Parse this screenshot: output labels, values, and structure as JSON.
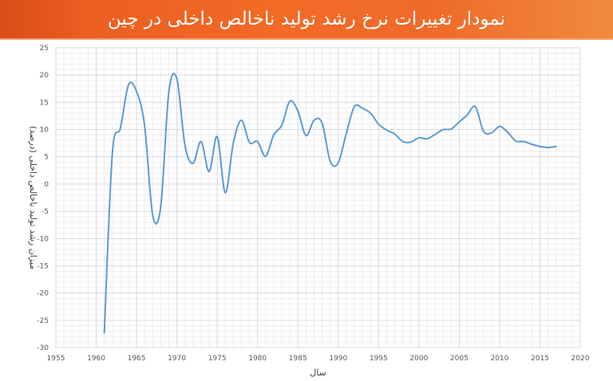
{
  "header": {
    "title": "نمودار تغییرات نرخ رشد تولید ناخالص داخلی در چین"
  },
  "colors": {
    "header_orange": "#f26a26",
    "line": "#5b9bd5",
    "grid": "#d9d9d9"
  },
  "chart_data": {
    "type": "line",
    "title": "نمودار تغییرات نرخ رشد تولید ناخالص داخلی در چین",
    "xlabel": "سال",
    "ylabel": "میزان رشد تولید ناخالص داخلی (درصد)",
    "xlim": [
      1955,
      2020
    ],
    "ylim": [
      -30,
      25
    ],
    "x_ticks": [
      1955,
      1960,
      1965,
      1970,
      1975,
      1980,
      1985,
      1990,
      1995,
      2000,
      2005,
      2010,
      2015,
      2020
    ],
    "y_ticks": [
      -30,
      -25,
      -20,
      -15,
      -10,
      -5,
      0,
      5,
      10,
      15,
      20,
      25
    ],
    "grid": true,
    "series": [
      {
        "x": [
          1961,
          1962,
          1963,
          1964,
          1965,
          1966,
          1967,
          1968,
          1969,
          1970,
          1971,
          1972,
          1973,
          1974,
          1975,
          1976,
          1977,
          1978,
          1979,
          1980,
          1981,
          1982,
          1983,
          1984,
          1985,
          1986,
          1987,
          1988,
          1989,
          1990,
          1991,
          1992,
          1993,
          1994,
          1995,
          1996,
          1997,
          1998,
          1999,
          2000,
          2001,
          2002,
          2003,
          2004,
          2005,
          2006,
          2007,
          2008,
          2009,
          2010,
          2011,
          2012,
          2013,
          2014,
          2015,
          2016,
          2017
        ],
        "values": [
          -27.3,
          5.6,
          10.3,
          18.2,
          17.0,
          10.7,
          -5.7,
          -4.1,
          16.9,
          19.3,
          7.1,
          3.8,
          7.8,
          2.3,
          8.7,
          -1.6,
          7.6,
          11.7,
          7.6,
          7.8,
          5.1,
          9.0,
          10.8,
          15.2,
          13.4,
          8.9,
          11.7,
          11.2,
          4.2,
          3.9,
          9.3,
          14.2,
          13.9,
          13.0,
          11.0,
          9.9,
          9.2,
          7.8,
          7.7,
          8.5,
          8.3,
          9.1,
          10.0,
          10.1,
          11.4,
          12.7,
          14.2,
          9.7,
          9.4,
          10.6,
          9.5,
          7.9,
          7.8,
          7.3,
          6.9,
          6.7,
          6.9
        ]
      }
    ]
  }
}
